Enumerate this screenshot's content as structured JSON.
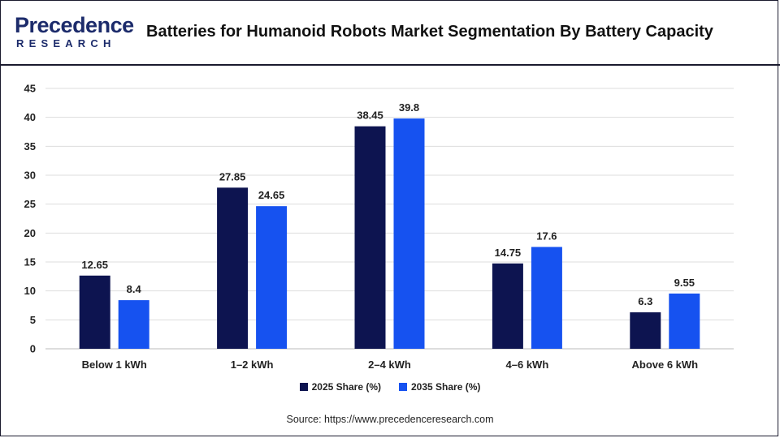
{
  "brand": {
    "logo_top": "Precedence",
    "logo_bottom": "RESEARCH",
    "color": "#1c2b6b"
  },
  "title": "Batteries for Humanoid Robots Market Segmentation By Battery Capacity",
  "source": "Source: https://www.precedenceresearch.com",
  "chart_data": {
    "type": "bar",
    "title": "Batteries for Humanoid Robots Market Segmentation By Battery Capacity",
    "xlabel": "",
    "ylabel": "",
    "ylim": [
      0,
      45
    ],
    "yticks": [
      0,
      5,
      10,
      15,
      20,
      25,
      30,
      35,
      40,
      45
    ],
    "grid": true,
    "legend_position": "bottom",
    "categories": [
      "Below 1 kWh",
      "1–2 kWh",
      "2–4 kWh",
      "4–6 kWh",
      "Above 6 kWh"
    ],
    "series": [
      {
        "name": "2025 Share (%)",
        "color": "#0d1450",
        "values": [
          12.65,
          27.85,
          38.45,
          14.75,
          6.3
        ]
      },
      {
        "name": "2035 Share (%)",
        "color": "#1652f0",
        "values": [
          8.4,
          24.65,
          39.8,
          17.6,
          9.55
        ]
      }
    ]
  }
}
